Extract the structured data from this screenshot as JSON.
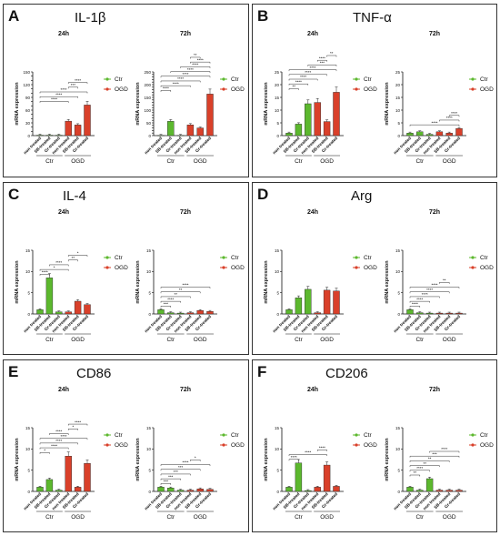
{
  "colors": {
    "ctr": "#5cb82e",
    "ogd": "#d9402a",
    "ogd_dark": "#b8301c",
    "frame": "#333333"
  },
  "legend": [
    "Ctr",
    "OGD"
  ],
  "group_labels": [
    "Ctr",
    "OGD"
  ],
  "categories": [
    "non treated",
    "SB-treated",
    "Gr-treated",
    "non treated",
    "SB-treated",
    "Gr-treated"
  ],
  "ylabel": "mRNA expression",
  "chart_data": [
    {
      "panel": "A",
      "title": "IL-1β",
      "type": "bar",
      "charts": [
        {
          "subtitle": "24h",
          "ylim": [
            0,
            150
          ],
          "yticks": [
            0,
            10,
            20,
            30,
            40,
            50,
            60,
            70,
            80,
            90,
            100,
            110,
            120,
            130,
            140,
            150
          ],
          "values": [
            1,
            1,
            1,
            34,
            25,
            72
          ],
          "brackets": [
            [
              0,
              3,
              "****"
            ],
            [
              0,
              4,
              "****"
            ],
            [
              0,
              5,
              "****"
            ],
            [
              3,
              4,
              "***"
            ],
            [
              3,
              5,
              "****"
            ]
          ]
        },
        {
          "subtitle": "72h",
          "ylim": [
            0,
            250
          ],
          "yticks": [
            0,
            10,
            20,
            30,
            40,
            50,
            60,
            70,
            80,
            90,
            100,
            110,
            120,
            130,
            140,
            150,
            160,
            170,
            180,
            190,
            200,
            210,
            220,
            230,
            240,
            250
          ],
          "values": [
            1,
            56,
            1,
            42,
            30,
            163
          ],
          "brackets": [
            [
              0,
              1,
              "****"
            ],
            [
              0,
              3,
              "****"
            ],
            [
              0,
              4,
              "****"
            ],
            [
              0,
              5,
              "****"
            ],
            [
              1,
              5,
              "****"
            ],
            [
              2,
              5,
              "****"
            ],
            [
              3,
              5,
              "****"
            ],
            [
              3,
              4,
              "**"
            ]
          ]
        }
      ]
    },
    {
      "panel": "B",
      "title": "TNF-α",
      "type": "bar",
      "charts": [
        {
          "subtitle": "24h",
          "ylim": [
            0,
            25
          ],
          "yticks": [
            0,
            5,
            10,
            15,
            20,
            25
          ],
          "values": [
            1,
            4.5,
            12.5,
            13,
            5.5,
            17
          ],
          "brackets": [
            [
              0,
              1,
              "**"
            ],
            [
              0,
              2,
              "****"
            ],
            [
              0,
              3,
              "****"
            ],
            [
              0,
              4,
              "****"
            ],
            [
              0,
              5,
              "****"
            ],
            [
              2,
              5,
              "***"
            ],
            [
              3,
              4,
              "****"
            ],
            [
              4,
              5,
              "**"
            ]
          ]
        },
        {
          "subtitle": "72h",
          "ylim": [
            0,
            25
          ],
          "yticks": [
            0,
            5,
            10,
            15,
            20,
            25
          ],
          "values": [
            1,
            1.5,
            0.5,
            1.5,
            1,
            2.8
          ],
          "brackets": [
            [
              0,
              5,
              "****"
            ],
            [
              3,
              5,
              "****"
            ],
            [
              4,
              5,
              "****"
            ]
          ]
        }
      ]
    },
    {
      "panel": "C",
      "title": "IL-4",
      "type": "bar",
      "charts": [
        {
          "subtitle": "24h",
          "ylim": [
            0,
            15
          ],
          "yticks": [
            0,
            5,
            10,
            15
          ],
          "values": [
            1,
            8.5,
            0.5,
            0.5,
            3,
            2.2
          ],
          "brackets": [
            [
              0,
              1,
              "****"
            ],
            [
              0,
              3,
              "*"
            ],
            [
              1,
              3,
              "****"
            ],
            [
              3,
              4,
              "**"
            ],
            [
              3,
              5,
              "*"
            ]
          ]
        },
        {
          "subtitle": "72h",
          "ylim": [
            0,
            15
          ],
          "yticks": [
            0,
            5,
            10,
            15
          ],
          "values": [
            1,
            0.3,
            0.2,
            0.3,
            0.8,
            0.6
          ],
          "brackets": [
            [
              0,
              1,
              "***"
            ],
            [
              0,
              2,
              "****"
            ],
            [
              0,
              3,
              "**"
            ],
            [
              0,
              4,
              "**"
            ],
            [
              0,
              5,
              "****"
            ]
          ]
        }
      ]
    },
    {
      "panel": "D",
      "title": "Arg",
      "type": "bar",
      "charts": [
        {
          "subtitle": "24h",
          "ylim": [
            0,
            15
          ],
          "yticks": [
            0,
            5,
            10,
            15
          ],
          "values": [
            1,
            3.8,
            5.8,
            0.3,
            5.6,
            5.4
          ],
          "brackets": []
        },
        {
          "subtitle": "72h",
          "ylim": [
            0,
            15
          ],
          "yticks": [
            0,
            5,
            10,
            15
          ],
          "values": [
            1,
            0.3,
            0.2,
            0.2,
            0.2,
            0.2
          ],
          "brackets": [
            [
              0,
              1,
              "****"
            ],
            [
              0,
              2,
              "****"
            ],
            [
              0,
              3,
              "****"
            ],
            [
              0,
              4,
              "****"
            ],
            [
              0,
              5,
              "****"
            ],
            [
              3,
              4,
              "**"
            ]
          ]
        }
      ]
    },
    {
      "panel": "E",
      "title": "CD86",
      "type": "bar",
      "charts": [
        {
          "subtitle": "24h",
          "ylim": [
            0,
            15
          ],
          "yticks": [
            0,
            5,
            10,
            15
          ],
          "values": [
            1,
            2.8,
            0.3,
            8.3,
            1,
            6.6
          ],
          "brackets": [
            [
              0,
              1,
              "*"
            ],
            [
              0,
              3,
              "****"
            ],
            [
              0,
              4,
              "****"
            ],
            [
              0,
              5,
              "****"
            ],
            [
              1,
              3,
              "****"
            ],
            [
              3,
              4,
              "*"
            ],
            [
              3,
              5,
              "****"
            ]
          ]
        },
        {
          "subtitle": "72h",
          "ylim": [
            0,
            15
          ],
          "yticks": [
            0,
            5,
            10,
            15
          ],
          "values": [
            1,
            0.8,
            0.3,
            0.3,
            0.6,
            0.5
          ],
          "brackets": [
            [
              0,
              1,
              "***"
            ],
            [
              0,
              2,
              "***"
            ],
            [
              0,
              3,
              "***"
            ],
            [
              0,
              4,
              "***"
            ],
            [
              0,
              5,
              "****"
            ],
            [
              3,
              4,
              "*"
            ]
          ]
        }
      ]
    },
    {
      "panel": "F",
      "title": "CD206",
      "type": "bar",
      "charts": [
        {
          "subtitle": "24h",
          "ylim": [
            0,
            15
          ],
          "yticks": [
            0,
            5,
            10,
            15
          ],
          "values": [
            1,
            6.7,
            0.2,
            1,
            6.2,
            1.2
          ],
          "brackets": [
            [
              0,
              1,
              "****"
            ],
            [
              0,
              4,
              "****"
            ],
            [
              3,
              4,
              "****"
            ]
          ]
        },
        {
          "subtitle": "72h",
          "ylim": [
            0,
            15
          ],
          "yticks": [
            0,
            5,
            10,
            15
          ],
          "values": [
            1,
            0.3,
            3,
            0.3,
            0.3,
            0.3
          ],
          "brackets": [
            [
              0,
              1,
              "**"
            ],
            [
              0,
              2,
              "****"
            ],
            [
              0,
              3,
              "**"
            ],
            [
              0,
              4,
              "**"
            ],
            [
              0,
              5,
              "***"
            ],
            [
              2,
              5,
              "****"
            ]
          ]
        }
      ]
    }
  ]
}
